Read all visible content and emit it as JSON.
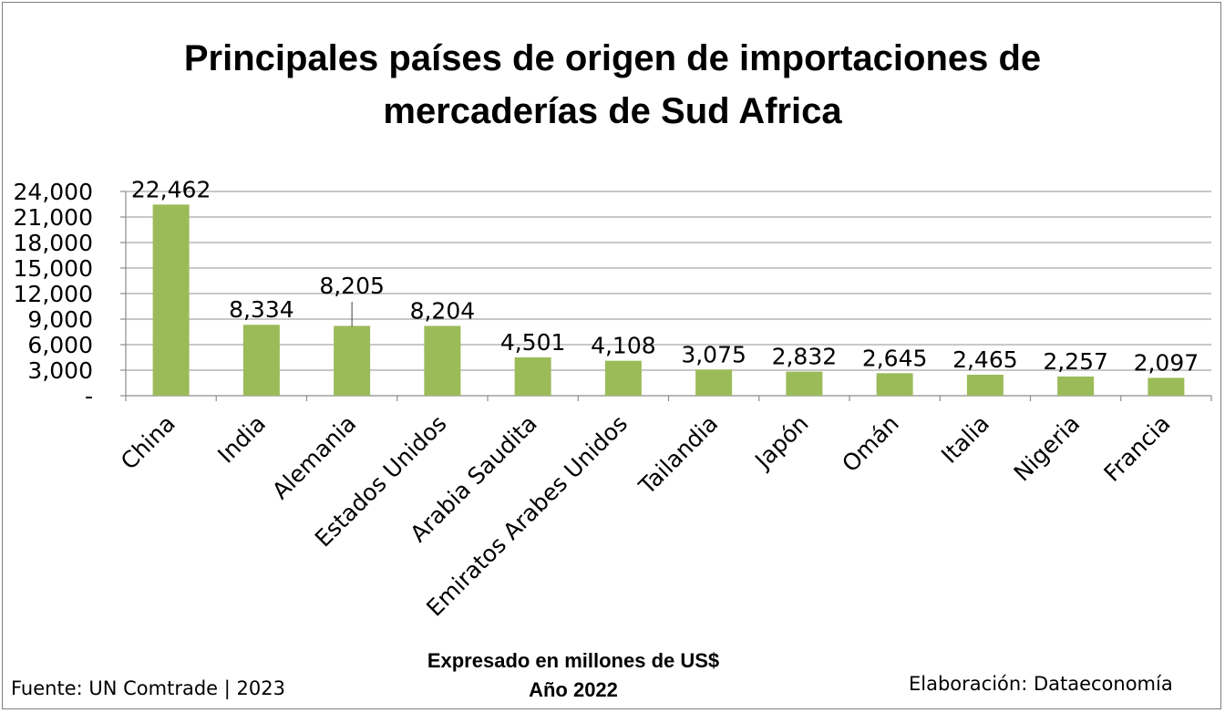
{
  "chart_data": {
    "type": "bar",
    "title_lines": [
      "Principales países de origen de importaciones de",
      "mercaderías de Sud Africa"
    ],
    "categories": [
      "China",
      "India",
      "Alemania",
      "Estados Unidos",
      "Arabia Saudita",
      "Emiratos Arabes Unidos",
      "Tailandia",
      "Japón",
      "Omán",
      "Italia",
      "Nigeria",
      "Francia"
    ],
    "values": [
      22462,
      8334,
      8205,
      8204,
      4501,
      4108,
      3075,
      2832,
      2645,
      2465,
      2257,
      2097
    ],
    "value_labels": [
      "22,462",
      "8,334",
      "8,205",
      "8,204",
      "4,501",
      "4,108",
      "3,075",
      "2,832",
      "2,645",
      "2,465",
      "2,257",
      "2,097"
    ],
    "y_ticks": [
      0,
      3000,
      6000,
      9000,
      12000,
      15000,
      18000,
      21000,
      24000
    ],
    "y_tick_labels": [
      "-",
      "3,000",
      "6,000",
      "9,000",
      "12,000",
      "15,000",
      "18,000",
      "21,000",
      "24,000"
    ],
    "ylim": [
      0,
      24000
    ],
    "grid": true,
    "bar_color": "#9bbb59",
    "xlabel_lines": [
      "Expresado en millones de US$",
      "Año 2022"
    ]
  },
  "footer": {
    "source": "Fuente: UN Comtrade | 2023",
    "credit": "Elaboración: Dataeconomía"
  }
}
